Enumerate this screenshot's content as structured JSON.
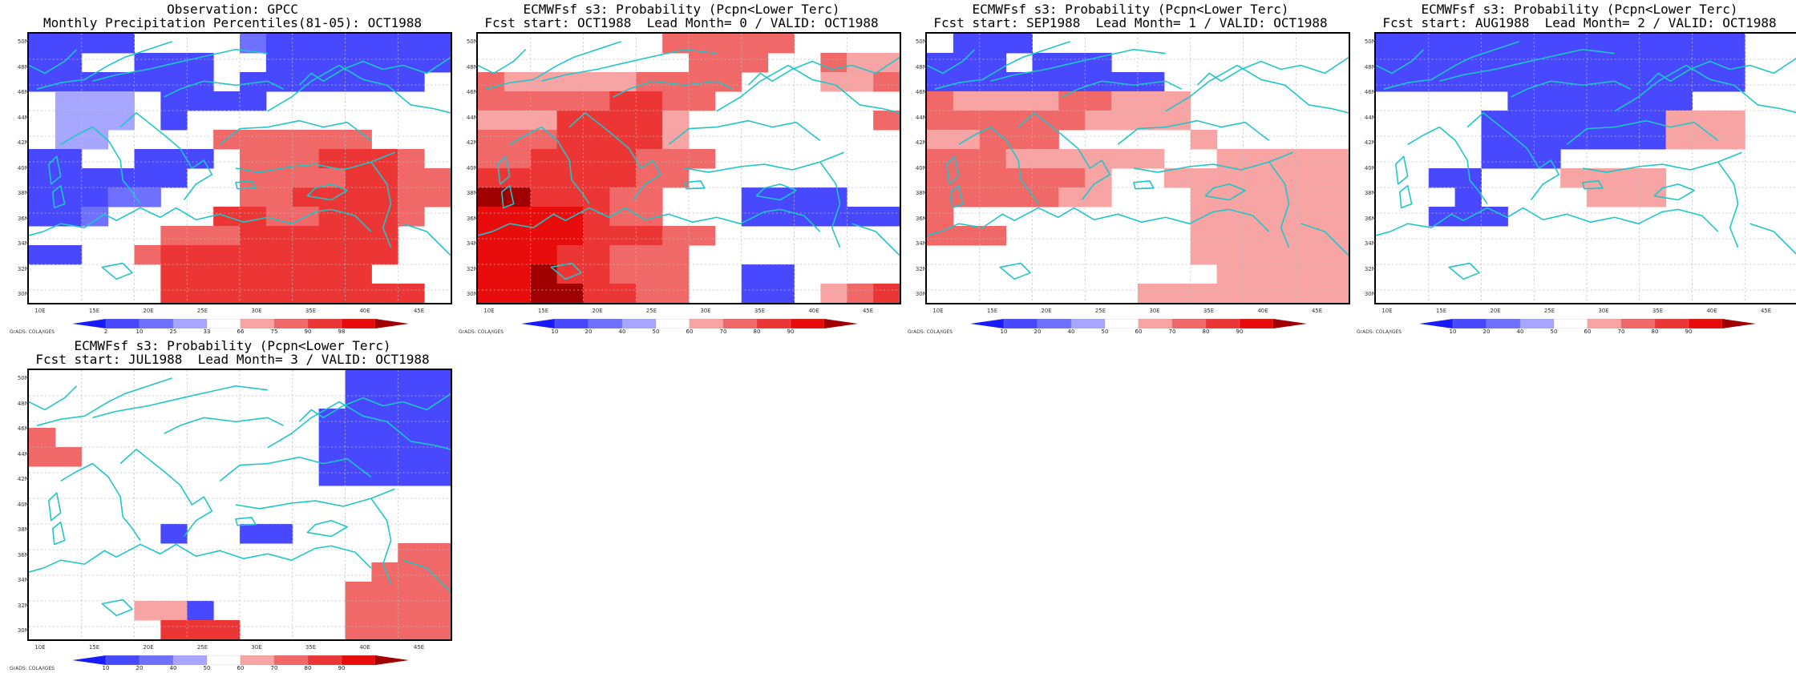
{
  "colors": {
    "coastline": "#1fc6c6",
    "grid": "#bbbbbb",
    "palette": [
      "#1a1aff",
      "#4848ff",
      "#7070ff",
      "#a6a6ff",
      "#ffffff",
      "#f8a4a4",
      "#f06868",
      "#ec3636",
      "#e80c0c",
      "#a00000"
    ]
  },
  "axes": {
    "lat_labels": [
      "50N",
      "48N",
      "46N",
      "44N",
      "42N",
      "40N",
      "38N",
      "36N",
      "34N",
      "32N",
      "30N"
    ],
    "lon_labels": [
      "10E",
      "15E",
      "20E",
      "25E",
      "30E",
      "35E",
      "40E",
      "45E"
    ],
    "grads_credit": "GrADS: COLA/IGES"
  },
  "panels": [
    {
      "title_line1": "Observation: GPCC",
      "title_line2": "Monthly Precipitation Percentiles(81-05): OCT1988",
      "colorbar_labels": [
        "2",
        "10",
        "25",
        "33",
        "66",
        "75",
        "90",
        "98"
      ],
      "grid": [
        "1111000021111111",
        "1100111001111111",
        "1111111011111110",
        "0333011110000000",
        "0333010000000000",
        "0330000666666000",
        "1100111066677760",
        "1111110066667766",
        "1112200066777766",
        "1120000776677760",
        "0000066677777700",
        "1100677777777700",
        "0000077777777000",
        "0000077777777770"
      ]
    },
    {
      "title_line1": "ECMWFsf s3: Probability (Pcpn<Lower Terc)",
      "title_line2": "Fcst start: OCT1988  Lead Month= 0 / VALID: OCT1988",
      "colorbar_labels": [
        "10",
        "20",
        "40",
        "50",
        "60",
        "70",
        "80",
        "90"
      ],
      "grid": [
        "0000000666660000",
        "0000000066600655",
        "6555556666000556",
        "6666677660000000",
        "5557777500000006",
        "6667777500000000",
        "6677776660000000",
        "7777776600000000",
        "9977766000111100",
        "8888766000111111",
        "8888777660000000",
        "8887766600000000",
        "8897766600110000",
        "8899776600110567"
      ]
    },
    {
      "title_line1": "ECMWFsf s3: Probability (Pcpn<Lower Terc)",
      "title_line2": "Fcst start: SEP1988  Lead Month= 1 / VALID: OCT1988",
      "colorbar_labels": [
        "10",
        "20",
        "40",
        "50",
        "60",
        "70",
        "80",
        "90"
      ],
      "grid": [
        "0111000000000000",
        "1110111000000000",
        "1111111110000000",
        "6555566555000000",
        "6666665555000000",
        "5566600000500000",
        "6665555550055555",
        "6666665005555555",
        "6666655000555555",
        "6000000000555555",
        "6660000000555555",
        "0000000000555555",
        "0000000000055555",
        "0000000055555555"
      ]
    },
    {
      "title_line1": "ECMWFsf s3: Probability (Pcpn<Lower Terc)",
      "title_line2": "Fcst start: AUG1988  Lead Month= 2 / VALID: OCT1988",
      "colorbar_labels": [
        "10",
        "20",
        "40",
        "50",
        "60",
        "70",
        "80",
        "90"
      ],
      "grid": [
        "1111111111111100",
        "1111111111111100",
        "1111111111111100",
        "0000011111110000",
        "0000111111155500",
        "0000111111155500",
        "0000111000000000",
        "0011000555500000",
        "0001000055500000",
        "0011100000000000",
        "0000000000000000",
        "0000000000000000",
        "0000000000000000",
        "0000000000000000"
      ]
    },
    {
      "title_line1": "ECMWFsf s3: Probability (Pcpn<Lower Terc)",
      "title_line2": "Fcst start: JUL1988  Lead Month= 3 / VALID: OCT1988",
      "colorbar_labels": [
        "10",
        "20",
        "40",
        "50",
        "60",
        "70",
        "80",
        "90"
      ],
      "grid": [
        "0000000000001111",
        "0000000000001111",
        "0000000000011111",
        "6000000000011111",
        "6600000000011111",
        "0000000000011111",
        "0000000000000000",
        "0000000000000000",
        "0000010011000000",
        "0000000000000066",
        "0000000000000666",
        "0000000000006666",
        "0000551000006666",
        "0000077700006666"
      ]
    }
  ]
}
